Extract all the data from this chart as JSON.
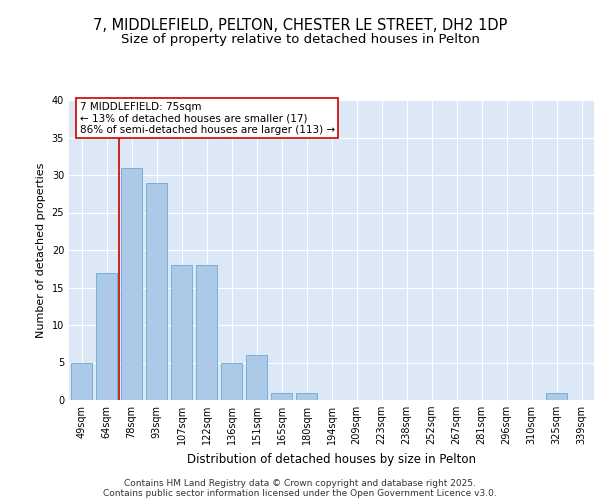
{
  "title_line1": "7, MIDDLEFIELD, PELTON, CHESTER LE STREET, DH2 1DP",
  "title_line2": "Size of property relative to detached houses in Pelton",
  "xlabel": "Distribution of detached houses by size in Pelton",
  "ylabel": "Number of detached properties",
  "categories": [
    "49sqm",
    "64sqm",
    "78sqm",
    "93sqm",
    "107sqm",
    "122sqm",
    "136sqm",
    "151sqm",
    "165sqm",
    "180sqm",
    "194sqm",
    "209sqm",
    "223sqm",
    "238sqm",
    "252sqm",
    "267sqm",
    "281sqm",
    "296sqm",
    "310sqm",
    "325sqm",
    "339sqm"
  ],
  "values": [
    5,
    17,
    31,
    29,
    18,
    18,
    5,
    6,
    1,
    1,
    0,
    0,
    0,
    0,
    0,
    0,
    0,
    0,
    0,
    1,
    0
  ],
  "bar_color": "#adc9e8",
  "bar_edge_color": "#6aaad4",
  "background_color": "#dce8f5",
  "grid_color": "#ffffff",
  "vline_index": 2,
  "vline_color": "#cc0000",
  "annotation_text": "7 MIDDLEFIELD: 75sqm\n← 13% of detached houses are smaller (17)\n86% of semi-detached houses are larger (113) →",
  "annotation_box_edgecolor": "#cc0000",
  "ylim": [
    0,
    40
  ],
  "yticks": [
    0,
    5,
    10,
    15,
    20,
    25,
    30,
    35,
    40
  ],
  "footnote_line1": "Contains HM Land Registry data © Crown copyright and database right 2025.",
  "footnote_line2": "Contains public sector information licensed under the Open Government Licence v3.0.",
  "title_fontsize": 10.5,
  "subtitle_fontsize": 9.5,
  "xlabel_fontsize": 8.5,
  "ylabel_fontsize": 8.0,
  "tick_fontsize": 7.0,
  "annotation_fontsize": 7.5,
  "footnote_fontsize": 6.5
}
